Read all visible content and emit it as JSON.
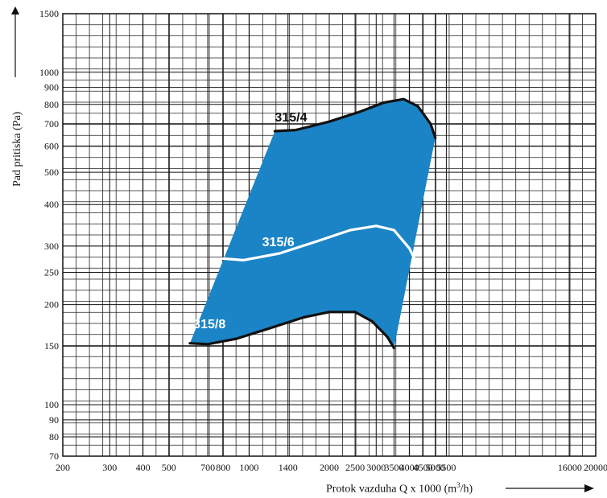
{
  "chart_data": {
    "type": "area",
    "title": "",
    "xlabel": "Protok vazduha  Q x 1000 (m3/h)",
    "xlabel_main": "Protok vazduha  Q x 1000 (m",
    "xlabel_sup": "3",
    "xlabel_tail": "/h)",
    "ylabel": "Pad pritiska (Pa)",
    "x_scale": "log",
    "y_scale": "log",
    "xlim": [
      200,
      20000
    ],
    "ylim": [
      70,
      1500
    ],
    "grid": true,
    "x_ticks": [
      200,
      300,
      400,
      500,
      700,
      800,
      1000,
      1400,
      2000,
      2500,
      3000,
      3500,
      4000,
      4500,
      5000,
      5500,
      16000,
      20000
    ],
    "x_tick_labels": [
      "200",
      "300",
      "400",
      "500",
      "700",
      "800",
      "1000",
      "1400",
      "2000",
      "2500",
      "3000",
      "3500",
      "4000",
      "4500",
      "5000",
      "5500",
      "16000",
      "20000"
    ],
    "y_ticks": [
      70,
      80,
      90,
      100,
      150,
      200,
      250,
      300,
      400,
      500,
      600,
      700,
      800,
      900,
      1000,
      1500
    ],
    "y_tick_labels": [
      "70",
      "80",
      "90",
      "100",
      "150",
      "200",
      "250",
      "300",
      "400",
      "500",
      "600",
      "700",
      "800",
      "900",
      "1000",
      "1500"
    ],
    "area_color": "#1b84c6",
    "series": [
      {
        "name": "315/4",
        "color": "#111111",
        "x": [
          1250,
          1500,
          2000,
          2600,
          3200,
          3800,
          4300,
          4800,
          5000
        ],
        "y": [
          665,
          670,
          710,
          760,
          810,
          830,
          790,
          700,
          635
        ]
      },
      {
        "name": "315/6",
        "color": "#ffffff",
        "x": [
          800,
          950,
          1300,
          1800,
          2400,
          3000,
          3500,
          4000,
          4300
        ],
        "y": [
          275,
          272,
          285,
          310,
          335,
          345,
          335,
          295,
          262
        ]
      },
      {
        "name": "315/8",
        "color": "#111111",
        "x": [
          600,
          700,
          900,
          1200,
          1600,
          2000,
          2500,
          2900,
          3300,
          3500
        ],
        "y": [
          153,
          152,
          158,
          170,
          183,
          190,
          190,
          178,
          160,
          148
        ]
      }
    ],
    "series_label_colors": [
      "#111111",
      "#ffffff",
      "#ffffff"
    ]
  }
}
